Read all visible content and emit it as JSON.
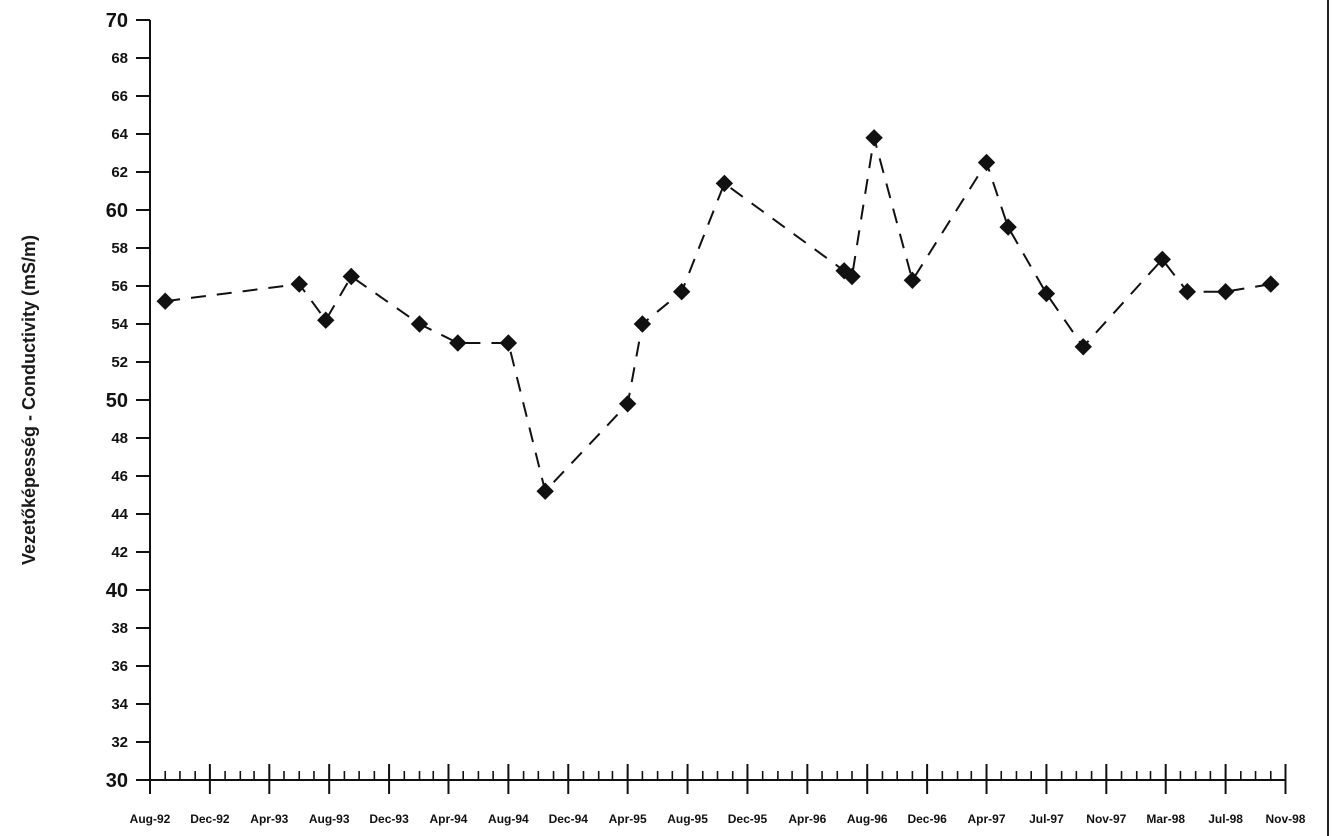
{
  "chart_data": {
    "type": "line",
    "title": "",
    "xlabel": "",
    "ylabel": "Vezetőképesség - Conductivity (mS/m)",
    "ylim": [
      30,
      70
    ],
    "xlim": [
      "1992-08-01",
      "1998-11-30"
    ],
    "x_axis_type": "date",
    "grid": false,
    "legend": "none",
    "line_style": "dashed",
    "marker": "diamond",
    "series_color": "#111111",
    "y_ticks": [
      30,
      32,
      34,
      36,
      38,
      40,
      42,
      44,
      46,
      48,
      50,
      52,
      54,
      56,
      58,
      60,
      62,
      64,
      66,
      68,
      70
    ],
    "y_ticks_large": [
      30,
      40,
      50,
      60,
      70
    ],
    "x_tick_labels": [
      {
        "label": "Aug-92",
        "date": "1992-08-01"
      },
      {
        "label": "Dec-92",
        "date": "1992-12-01"
      },
      {
        "label": "Apr-93",
        "date": "1993-04-01"
      },
      {
        "label": "Aug-93",
        "date": "1993-08-01"
      },
      {
        "label": "Dec-93",
        "date": "1993-12-01"
      },
      {
        "label": "Apr-94",
        "date": "1994-04-01"
      },
      {
        "label": "Aug-94",
        "date": "1994-08-01"
      },
      {
        "label": "Dec-94",
        "date": "1994-12-01"
      },
      {
        "label": "Apr-95",
        "date": "1995-04-01"
      },
      {
        "label": "Aug-95",
        "date": "1995-08-01"
      },
      {
        "label": "Dec-95",
        "date": "1995-12-01"
      },
      {
        "label": "Apr-96",
        "date": "1996-04-01"
      },
      {
        "label": "Aug-96",
        "date": "1996-08-01"
      },
      {
        "label": "Dec-96",
        "date": "1996-12-01"
      },
      {
        "label": "Apr-97",
        "date": "1997-04-01"
      },
      {
        "label": "Jul-97",
        "date": "1997-08-01"
      },
      {
        "label": "Nov-97",
        "date": "1997-12-01"
      },
      {
        "label": "Mar-98",
        "date": "1998-04-01"
      },
      {
        "label": "Jul-98",
        "date": "1998-08-01"
      },
      {
        "label": "Nov-98",
        "date": "1998-12-01"
      }
    ],
    "series": [
      {
        "points": [
          {
            "x": "1992-09-01",
            "y": 55.2
          },
          {
            "x": "1993-06-01",
            "y": 56.1
          },
          {
            "x": "1993-07-25",
            "y": 54.2
          },
          {
            "x": "1993-09-15",
            "y": 56.5
          },
          {
            "x": "1994-02-01",
            "y": 54.0
          },
          {
            "x": "1994-04-20",
            "y": 53.0
          },
          {
            "x": "1994-08-01",
            "y": 53.0
          },
          {
            "x": "1994-10-15",
            "y": 45.2
          },
          {
            "x": "1995-04-01",
            "y": 49.8
          },
          {
            "x": "1995-05-01",
            "y": 54.0
          },
          {
            "x": "1995-07-20",
            "y": 55.7
          },
          {
            "x": "1995-10-15",
            "y": 61.4
          },
          {
            "x": "1996-06-15",
            "y": 56.8
          },
          {
            "x": "1996-07-01",
            "y": 56.5
          },
          {
            "x": "1996-08-15",
            "y": 63.8
          },
          {
            "x": "1996-11-01",
            "y": 56.3
          },
          {
            "x": "1997-04-01",
            "y": 62.5
          },
          {
            "x": "1997-05-15",
            "y": 59.1
          },
          {
            "x": "1997-08-01",
            "y": 55.6
          },
          {
            "x": "1997-10-15",
            "y": 52.8
          },
          {
            "x": "1998-03-25",
            "y": 57.4
          },
          {
            "x": "1998-05-15",
            "y": 55.7
          },
          {
            "x": "1998-08-01",
            "y": 55.7
          },
          {
            "x": "1998-11-01",
            "y": 56.1
          }
        ]
      }
    ]
  }
}
